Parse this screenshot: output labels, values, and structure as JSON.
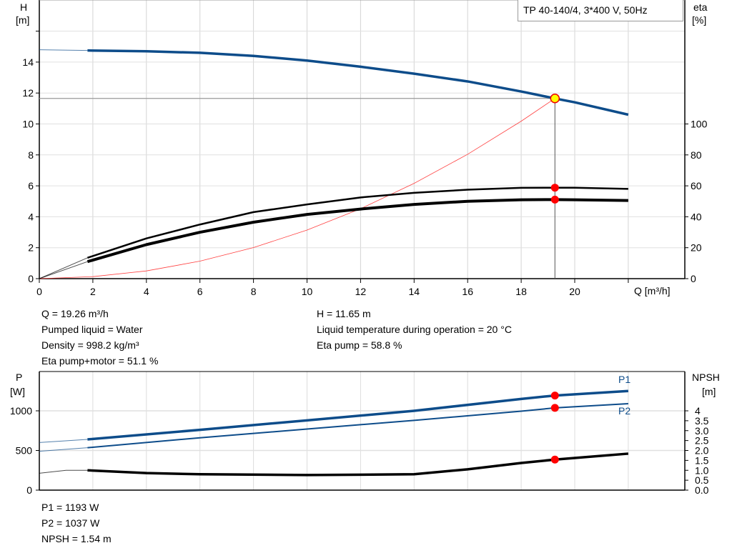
{
  "chart_data": [
    {
      "type": "line",
      "title": "TP 40-140/4, 3*400 V, 50Hz",
      "xlabel": "Q [m³/h]",
      "ylabel": "H\n[m]",
      "y2label": "eta\n[%]",
      "xlim": [
        0,
        24
      ],
      "ylim": [
        0,
        18
      ],
      "y2lim": [
        0,
        180
      ],
      "grid": true,
      "xticks": [
        0,
        2,
        4,
        6,
        8,
        10,
        12,
        14,
        16,
        18,
        20
      ],
      "yticks": [
        0,
        2,
        4,
        6,
        8,
        10,
        12,
        14
      ],
      "y2ticks": [
        0,
        20,
        40,
        60,
        80,
        100
      ],
      "series": [
        {
          "key": "H",
          "axis": "left",
          "color": "#0d4c8a",
          "x": [
            0,
            1.8,
            4,
            6,
            8,
            10,
            12,
            14,
            16,
            18,
            19.26,
            20,
            22
          ],
          "y": [
            14.8,
            14.75,
            14.7,
            14.6,
            14.4,
            14.1,
            13.7,
            13.25,
            12.75,
            12.1,
            11.65,
            11.4,
            10.6
          ]
        },
        {
          "key": "eta_pump",
          "axis": "right",
          "color": "#000000",
          "x": [
            0,
            1.8,
            4,
            6,
            8,
            10,
            12,
            14,
            16,
            18,
            19.26,
            20,
            22
          ],
          "y": [
            0,
            13.5,
            26,
            35,
            43,
            48,
            52.5,
            55.5,
            57.5,
            58.7,
            58.8,
            58.8,
            58
          ]
        },
        {
          "key": "eta_total",
          "axis": "right",
          "color": "#000000",
          "x": [
            0,
            1.8,
            4,
            6,
            8,
            10,
            12,
            14,
            16,
            18,
            19.26,
            20,
            22
          ],
          "y": [
            0,
            11,
            22,
            30,
            36.5,
            41.5,
            45,
            48,
            50,
            51,
            51.1,
            51,
            50.5
          ]
        },
        {
          "key": "system",
          "axis": "left",
          "color": "#ff4040",
          "x": [
            0,
            2,
            4,
            6,
            8,
            10,
            12,
            14,
            16,
            18,
            19.26
          ],
          "y": [
            0,
            0.13,
            0.5,
            1.13,
            2.01,
            3.14,
            4.52,
            6.16,
            8.04,
            10.18,
            11.65
          ]
        }
      ],
      "duty_point": {
        "Q": 19.26,
        "H": 11.65,
        "eta_pump": 58.8,
        "eta_total": 51.1
      }
    },
    {
      "type": "line",
      "ylabel": "P\n[W]",
      "y2label": "NPSH\n[m]",
      "xlim": [
        0,
        24
      ],
      "ylim": [
        0,
        1500
      ],
      "y2lim": [
        0,
        6
      ],
      "grid": true,
      "yticks": [
        0,
        500,
        1000
      ],
      "y2ticks": [
        "0.0",
        "0.5",
        "1.0",
        "1.5",
        "2.0",
        "2.5",
        "3.0",
        "3.5",
        "4"
      ],
      "series": [
        {
          "key": "P1",
          "name": "P1",
          "axis": "left",
          "color": "#0d4c8a",
          "x": [
            0,
            1.8,
            6,
            10,
            14,
            18,
            19.26,
            22
          ],
          "y": [
            600,
            640,
            760,
            880,
            1000,
            1150,
            1193,
            1250
          ]
        },
        {
          "key": "P2",
          "name": "P2",
          "axis": "left",
          "color": "#0d4c8a",
          "x": [
            0,
            1.8,
            6,
            10,
            14,
            18,
            19.26,
            22
          ],
          "y": [
            490,
            535,
            660,
            770,
            880,
            995,
            1037,
            1090
          ]
        },
        {
          "key": "NPSH",
          "axis": "right",
          "color": "#000000",
          "x": [
            0,
            1,
            1.8,
            4,
            6,
            10,
            14,
            16,
            18,
            19.26,
            22
          ],
          "y": [
            0.85,
            1.0,
            1.0,
            0.86,
            0.8,
            0.76,
            0.8,
            1.05,
            1.37,
            1.54,
            1.84
          ]
        }
      ],
      "duty_point": {
        "Q": 19.26,
        "P1": 1193,
        "P2": 1037,
        "NPSH": 1.54
      }
    }
  ],
  "info": {
    "q": "Q = 19.26 m³/h",
    "liquid": "Pumped liquid = Water",
    "density": "Density = 998.2 kg/m³",
    "eta_total": "Eta pump+motor = 51.1 %",
    "h": "H = 11.65 m",
    "temp": "Liquid temperature during operation = 20 °C",
    "eta_pump": "Eta pump = 58.8 %",
    "p1": "P1 = 1193 W",
    "p2": "P2 = 1037 W",
    "npsh": "NPSH = 1.54 m"
  },
  "labels": {
    "h": "H",
    "h_unit": "[m]",
    "eta": "eta",
    "eta_unit": "[%]",
    "q_axis": "Q [m³/h]",
    "p": "P",
    "p_unit": "[W]",
    "npsh": "NPSH",
    "npsh_unit": "[m]",
    "p1": "P1",
    "p2": "P2"
  }
}
